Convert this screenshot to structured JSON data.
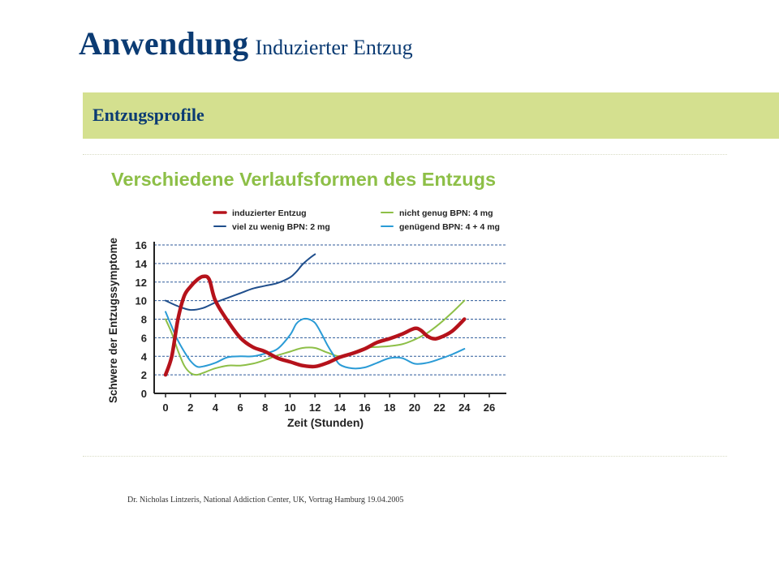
{
  "header": {
    "title": "Anwendung",
    "subtitle": "Induzierter Entzug"
  },
  "section": {
    "title": "Entzugsprofile"
  },
  "source": "Dr. Nicholas Lintzeris, National Addiction Center, UK, Vortrag Hamburg 19.04.2005",
  "chart_data": {
    "type": "line",
    "title": "Verschiedene Verlaufsformen des Entzugs",
    "xlabel": "Zeit (Stunden)",
    "ylabel": "Schwere der Entzugssymptome",
    "xlim": [
      0,
      26
    ],
    "ylim": [
      0,
      16
    ],
    "xticks": [
      0,
      2,
      4,
      6,
      8,
      10,
      12,
      14,
      16,
      18,
      20,
      22,
      24,
      26
    ],
    "yticks": [
      0,
      2,
      4,
      6,
      8,
      10,
      12,
      14,
      16
    ],
    "grid": "horizontal dashed",
    "legend_position": "top",
    "series": [
      {
        "name": "induzierter Entzug",
        "color": "#b5121b",
        "x": [
          0,
          0.5,
          1,
          1.5,
          2,
          2.5,
          3,
          3.5,
          4,
          5,
          6,
          7,
          8,
          9,
          10,
          11,
          12,
          13,
          14,
          15,
          16,
          17,
          18,
          19,
          20,
          20.5,
          21,
          21.5,
          22,
          23,
          24
        ],
        "y": [
          2,
          4,
          8,
          10.5,
          11.5,
          12.2,
          12.6,
          12.3,
          10,
          7.8,
          6,
          5,
          4.5,
          3.8,
          3.4,
          3,
          2.9,
          3.3,
          3.9,
          4.3,
          4.8,
          5.5,
          5.9,
          6.4,
          7,
          6.8,
          6.2,
          5.9,
          6,
          6.7,
          8
        ]
      },
      {
        "name": "viel zu wenig BPN: 2 mg",
        "color": "#1f4e8c",
        "x": [
          0,
          1,
          2,
          3,
          4,
          5,
          6,
          7,
          8,
          9,
          10,
          10.5,
          11,
          11.5,
          12
        ],
        "y": [
          10,
          9.4,
          9,
          9.2,
          9.8,
          10.3,
          10.8,
          11.3,
          11.6,
          11.9,
          12.5,
          13.1,
          13.9,
          14.5,
          15
        ]
      },
      {
        "name": "nicht genug BPN: 4 mg",
        "color": "#8dbf47",
        "x": [
          0,
          0.5,
          1,
          1.5,
          2,
          2.5,
          3,
          4,
          5,
          6,
          7,
          8,
          9,
          10,
          11,
          12,
          13,
          14,
          15,
          16,
          17,
          18,
          19,
          20,
          21,
          22,
          23,
          24
        ],
        "y": [
          8,
          6.5,
          4.6,
          3,
          2.2,
          2,
          2.2,
          2.7,
          3,
          3,
          3.2,
          3.6,
          4.1,
          4.5,
          4.9,
          4.9,
          4.4,
          4,
          4.4,
          4.9,
          5,
          5.1,
          5.3,
          5.8,
          6.5,
          7.5,
          8.7,
          10
        ]
      },
      {
        "name": "genügend BPN: 4 + 4 mg",
        "color": "#2a9bd6",
        "x": [
          0,
          0.5,
          1,
          1.5,
          2,
          2.5,
          3,
          4,
          5,
          6,
          7,
          8,
          9,
          10,
          10.5,
          11,
          11.5,
          12,
          12.5,
          13,
          13.5,
          14,
          15,
          16,
          17,
          18,
          19,
          20,
          21,
          22,
          23,
          24
        ],
        "y": [
          8.8,
          7.2,
          5.7,
          4.5,
          3.5,
          2.9,
          2.9,
          3.3,
          3.9,
          4,
          4,
          4.3,
          4.8,
          6.3,
          7.5,
          8,
          8,
          7.6,
          6.5,
          5.2,
          4.1,
          3.1,
          2.7,
          2.8,
          3.3,
          3.8,
          3.8,
          3.2,
          3.3,
          3.7,
          4.2,
          4.8
        ]
      }
    ]
  }
}
